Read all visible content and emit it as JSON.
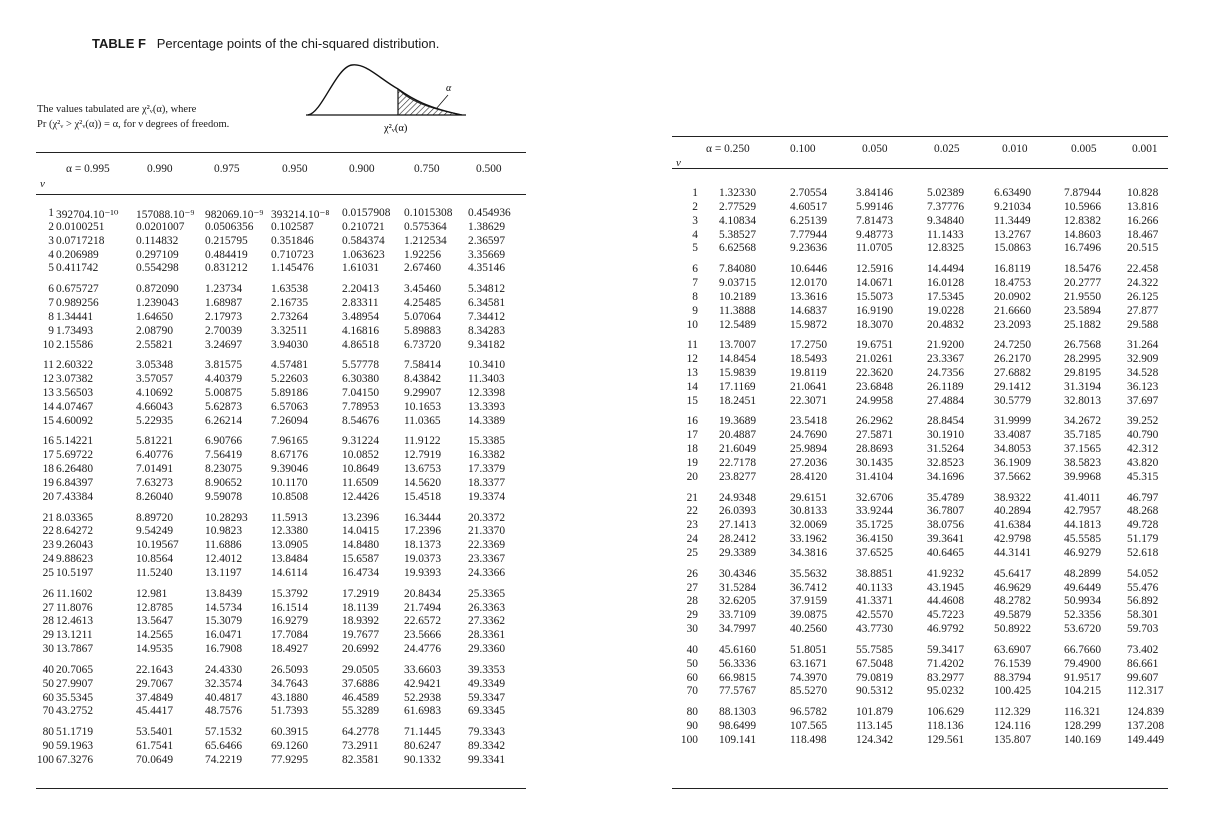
{
  "title": {
    "label": "TABLE F",
    "text": "Percentage points of the chi-squared distribution."
  },
  "note": {
    "line1": "The values tabulated are χ²ᵥ(α), where",
    "line2": "Pr (χ²ᵥ > χ²ᵥ(α)) = α, for ν degrees of freedom."
  },
  "diagram": {
    "alpha_label": "α",
    "axis_label": "χ²ᵥ(α)"
  },
  "nu_label": "ν",
  "left_table": {
    "headers": [
      "α = 0.995",
      "0.990",
      "0.975",
      "0.950",
      "0.900",
      "0.750",
      "0.500"
    ],
    "rows": [
      [
        "1",
        "392704.10⁻¹⁰",
        "157088.10⁻⁹",
        "982069.10⁻⁹",
        "393214.10⁻⁸",
        "0.0157908",
        "0.1015308",
        "0.454936"
      ],
      [
        "2",
        "0.0100251",
        "0.0201007",
        "0.0506356",
        "0.102587",
        "0.210721",
        "0.575364",
        "1.38629"
      ],
      [
        "3",
        "0.0717218",
        "0.114832",
        "0.215795",
        "0.351846",
        "0.584374",
        "1.212534",
        "2.36597"
      ],
      [
        "4",
        "0.206989",
        "0.297109",
        "0.484419",
        "0.710723",
        "1.063623",
        "1.92256",
        "3.35669"
      ],
      [
        "5",
        "0.411742",
        "0.554298",
        "0.831212",
        "1.145476",
        "1.61031",
        "2.67460",
        "4.35146"
      ],
      [
        "6",
        "0.675727",
        "0.872090",
        "1.23734",
        "1.63538",
        "2.20413",
        "3.45460",
        "5.34812"
      ],
      [
        "7",
        "0.989256",
        "1.239043",
        "1.68987",
        "2.16735",
        "2.83311",
        "4.25485",
        "6.34581"
      ],
      [
        "8",
        "1.34441",
        "1.64650",
        "2.17973",
        "2.73264",
        "3.48954",
        "5.07064",
        "7.34412"
      ],
      [
        "9",
        "1.73493",
        "2.08790",
        "2.70039",
        "3.32511",
        "4.16816",
        "5.89883",
        "8.34283"
      ],
      [
        "10",
        "2.15586",
        "2.55821",
        "3.24697",
        "3.94030",
        "4.86518",
        "6.73720",
        "9.34182"
      ],
      [
        "11",
        "2.60322",
        "3.05348",
        "3.81575",
        "4.57481",
        "5.57778",
        "7.58414",
        "10.3410"
      ],
      [
        "12",
        "3.07382",
        "3.57057",
        "4.40379",
        "5.22603",
        "6.30380",
        "8.43842",
        "11.3403"
      ],
      [
        "13",
        "3.56503",
        "4.10692",
        "5.00875",
        "5.89186",
        "7.04150",
        "9.29907",
        "12.3398"
      ],
      [
        "14",
        "4.07467",
        "4.66043",
        "5.62873",
        "6.57063",
        "7.78953",
        "10.1653",
        "13.3393"
      ],
      [
        "15",
        "4.60092",
        "5.22935",
        "6.26214",
        "7.26094",
        "8.54676",
        "11.0365",
        "14.3389"
      ],
      [
        "16",
        "5.14221",
        "5.81221",
        "6.90766",
        "7.96165",
        "9.31224",
        "11.9122",
        "15.3385"
      ],
      [
        "17",
        "5.69722",
        "6.40776",
        "7.56419",
        "8.67176",
        "10.0852",
        "12.7919",
        "16.3382"
      ],
      [
        "18",
        "6.26480",
        "7.01491",
        "8.23075",
        "9.39046",
        "10.8649",
        "13.6753",
        "17.3379"
      ],
      [
        "19",
        "6.84397",
        "7.63273",
        "8.90652",
        "10.1170",
        "11.6509",
        "14.5620",
        "18.3377"
      ],
      [
        "20",
        "7.43384",
        "8.26040",
        "9.59078",
        "10.8508",
        "12.4426",
        "15.4518",
        "19.3374"
      ],
      [
        "21",
        "8.03365",
        "8.89720",
        "10.28293",
        "11.5913",
        "13.2396",
        "16.3444",
        "20.3372"
      ],
      [
        "22",
        "8.64272",
        "9.54249",
        "10.9823",
        "12.3380",
        "14.0415",
        "17.2396",
        "21.3370"
      ],
      [
        "23",
        "9.26043",
        "10.19567",
        "11.6886",
        "13.0905",
        "14.8480",
        "18.1373",
        "22.3369"
      ],
      [
        "24",
        "9.88623",
        "10.8564",
        "12.4012",
        "13.8484",
        "15.6587",
        "19.0373",
        "23.3367"
      ],
      [
        "25",
        "10.5197",
        "11.5240",
        "13.1197",
        "14.6114",
        "16.4734",
        "19.9393",
        "24.3366"
      ],
      [
        "26",
        "11.1602",
        "12.981",
        "13.8439",
        "15.3792",
        "17.2919",
        "20.8434",
        "25.3365"
      ],
      [
        "27",
        "11.8076",
        "12.8785",
        "14.5734",
        "16.1514",
        "18.1139",
        "21.7494",
        "26.3363"
      ],
      [
        "28",
        "12.4613",
        "13.5647",
        "15.3079",
        "16.9279",
        "18.9392",
        "22.6572",
        "27.3362"
      ],
      [
        "29",
        "13.1211",
        "14.2565",
        "16.0471",
        "17.7084",
        "19.7677",
        "23.5666",
        "28.3361"
      ],
      [
        "30",
        "13.7867",
        "14.9535",
        "16.7908",
        "18.4927",
        "20.6992",
        "24.4776",
        "29.3360"
      ],
      [
        "40",
        "20.7065",
        "22.1643",
        "24.4330",
        "26.5093",
        "29.0505",
        "33.6603",
        "39.3353"
      ],
      [
        "50",
        "27.9907",
        "29.7067",
        "32.3574",
        "34.7643",
        "37.6886",
        "42.9421",
        "49.3349"
      ],
      [
        "60",
        "35.5345",
        "37.4849",
        "40.4817",
        "43.1880",
        "46.4589",
        "52.2938",
        "59.3347"
      ],
      [
        "70",
        "43.2752",
        "45.4417",
        "48.7576",
        "51.7393",
        "55.3289",
        "61.6983",
        "69.3345"
      ],
      [
        "80",
        "51.1719",
        "53.5401",
        "57.1532",
        "60.3915",
        "64.2778",
        "71.1445",
        "79.3343"
      ],
      [
        "90",
        "59.1963",
        "61.7541",
        "65.6466",
        "69.1260",
        "73.2911",
        "80.6247",
        "89.3342"
      ],
      [
        "100",
        "67.3276",
        "70.0649",
        "74.2219",
        "77.9295",
        "82.3581",
        "90.1332",
        "99.3341"
      ]
    ]
  },
  "right_table": {
    "headers": [
      "α = 0.250",
      "0.100",
      "0.050",
      "0.025",
      "0.010",
      "0.005",
      "0.001"
    ],
    "rows": [
      [
        "1",
        "1.32330",
        "2.70554",
        "3.84146",
        "5.02389",
        "6.63490",
        "7.87944",
        "10.828"
      ],
      [
        "2",
        "2.77529",
        "4.60517",
        "5.99146",
        "7.37776",
        "9.21034",
        "10.5966",
        "13.816"
      ],
      [
        "3",
        "4.10834",
        "6.25139",
        "7.81473",
        "9.34840",
        "11.3449",
        "12.8382",
        "16.266"
      ],
      [
        "4",
        "5.38527",
        "7.77944",
        "9.48773",
        "11.1433",
        "13.2767",
        "14.8603",
        "18.467"
      ],
      [
        "5",
        "6.62568",
        "9.23636",
        "11.0705",
        "12.8325",
        "15.0863",
        "16.7496",
        "20.515"
      ],
      [
        "6",
        "7.84080",
        "10.6446",
        "12.5916",
        "14.4494",
        "16.8119",
        "18.5476",
        "22.458"
      ],
      [
        "7",
        "9.03715",
        "12.0170",
        "14.0671",
        "16.0128",
        "18.4753",
        "20.2777",
        "24.322"
      ],
      [
        "8",
        "10.2189",
        "13.3616",
        "15.5073",
        "17.5345",
        "20.0902",
        "21.9550",
        "26.125"
      ],
      [
        "9",
        "11.3888",
        "14.6837",
        "16.9190",
        "19.0228",
        "21.6660",
        "23.5894",
        "27.877"
      ],
      [
        "10",
        "12.5489",
        "15.9872",
        "18.3070",
        "20.4832",
        "23.2093",
        "25.1882",
        "29.588"
      ],
      [
        "11",
        "13.7007",
        "17.2750",
        "19.6751",
        "21.9200",
        "24.7250",
        "26.7568",
        "31.264"
      ],
      [
        "12",
        "14.8454",
        "18.5493",
        "21.0261",
        "23.3367",
        "26.2170",
        "28.2995",
        "32.909"
      ],
      [
        "13",
        "15.9839",
        "19.8119",
        "22.3620",
        "24.7356",
        "27.6882",
        "29.8195",
        "34.528"
      ],
      [
        "14",
        "17.1169",
        "21.0641",
        "23.6848",
        "26.1189",
        "29.1412",
        "31.3194",
        "36.123"
      ],
      [
        "15",
        "18.2451",
        "22.3071",
        "24.9958",
        "27.4884",
        "30.5779",
        "32.8013",
        "37.697"
      ],
      [
        "16",
        "19.3689",
        "23.5418",
        "26.2962",
        "28.8454",
        "31.9999",
        "34.2672",
        "39.252"
      ],
      [
        "17",
        "20.4887",
        "24.7690",
        "27.5871",
        "30.1910",
        "33.4087",
        "35.7185",
        "40.790"
      ],
      [
        "18",
        "21.6049",
        "25.9894",
        "28.8693",
        "31.5264",
        "34.8053",
        "37.1565",
        "42.312"
      ],
      [
        "19",
        "22.7178",
        "27.2036",
        "30.1435",
        "32.8523",
        "36.1909",
        "38.5823",
        "43.820"
      ],
      [
        "20",
        "23.8277",
        "28.4120",
        "31.4104",
        "34.1696",
        "37.5662",
        "39.9968",
        "45.315"
      ],
      [
        "21",
        "24.9348",
        "29.6151",
        "32.6706",
        "35.4789",
        "38.9322",
        "41.4011",
        "46.797"
      ],
      [
        "22",
        "26.0393",
        "30.8133",
        "33.9244",
        "36.7807",
        "40.2894",
        "42.7957",
        "48.268"
      ],
      [
        "23",
        "27.1413",
        "32.0069",
        "35.1725",
        "38.0756",
        "41.6384",
        "44.1813",
        "49.728"
      ],
      [
        "24",
        "28.2412",
        "33.1962",
        "36.4150",
        "39.3641",
        "42.9798",
        "45.5585",
        "51.179"
      ],
      [
        "25",
        "29.3389",
        "34.3816",
        "37.6525",
        "40.6465",
        "44.3141",
        "46.9279",
        "52.618"
      ],
      [
        "26",
        "30.4346",
        "35.5632",
        "38.8851",
        "41.9232",
        "45.6417",
        "48.2899",
        "54.052"
      ],
      [
        "27",
        "31.5284",
        "36.7412",
        "40.1133",
        "43.1945",
        "46.9629",
        "49.6449",
        "55.476"
      ],
      [
        "28",
        "32.6205",
        "37.9159",
        "41.3371",
        "44.4608",
        "48.2782",
        "50.9934",
        "56.892"
      ],
      [
        "29",
        "33.7109",
        "39.0875",
        "42.5570",
        "45.7223",
        "49.5879",
        "52.3356",
        "58.301"
      ],
      [
        "30",
        "34.7997",
        "40.2560",
        "43.7730",
        "46.9792",
        "50.8922",
        "53.6720",
        "59.703"
      ],
      [
        "40",
        "45.6160",
        "51.8051",
        "55.7585",
        "59.3417",
        "63.6907",
        "66.7660",
        "73.402"
      ],
      [
        "50",
        "56.3336",
        "63.1671",
        "67.5048",
        "71.4202",
        "76.1539",
        "79.4900",
        "86.661"
      ],
      [
        "60",
        "66.9815",
        "74.3970",
        "79.0819",
        "83.2977",
        "88.3794",
        "91.9517",
        "99.607"
      ],
      [
        "70",
        "77.5767",
        "85.5270",
        "90.5312",
        "95.0232",
        "100.425",
        "104.215",
        "112.317"
      ],
      [
        "80",
        "88.1303",
        "96.5782",
        "101.879",
        "106.629",
        "112.329",
        "116.321",
        "124.839"
      ],
      [
        "90",
        "98.6499",
        "107.565",
        "113.145",
        "118.136",
        "124.116",
        "128.299",
        "137.208"
      ],
      [
        "100",
        "109.141",
        "118.498",
        "124.342",
        "129.561",
        "135.807",
        "140.169",
        "149.449"
      ]
    ]
  }
}
